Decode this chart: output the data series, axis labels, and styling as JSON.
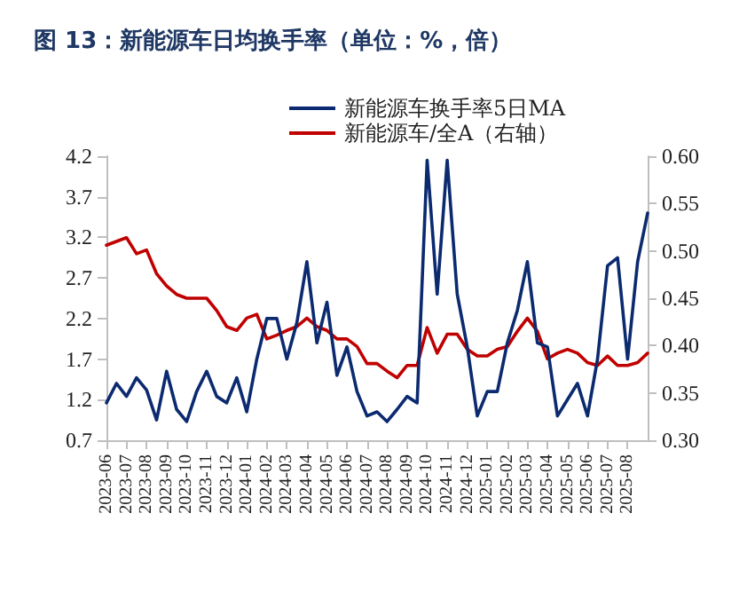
{
  "chart_data": {
    "type": "line",
    "title": "图 13：新能源车日均换手率（单位：%，倍）",
    "categories": [
      "2023-06",
      null,
      "2023-07",
      null,
      "2023-08",
      null,
      "2023-09",
      null,
      "2023-10",
      null,
      "2023-11",
      null,
      "2023-12",
      null,
      "2024-01",
      null,
      "2024-02",
      null,
      "2024-03",
      null,
      "2024-04",
      null,
      "2024-05",
      null,
      "2024-06",
      null,
      "2024-07",
      null,
      "2024-08",
      null,
      "2024-09",
      null,
      "2024-10",
      null,
      "2024-11",
      null,
      "2024-12",
      null,
      "2025-01",
      null,
      "2025-02",
      null,
      "2025-03",
      null,
      "2025-04",
      null,
      "2025-05",
      null,
      "2025-06",
      null,
      "2025-07",
      null,
      "2025-08",
      null,
      null
    ],
    "series": [
      {
        "name": "新能源车换手率5日MA",
        "color": "#0b2a6f",
        "values": [
          1.16,
          1.4,
          1.24,
          1.47,
          1.32,
          0.95,
          1.55,
          1.08,
          0.93,
          1.3,
          1.55,
          1.24,
          1.16,
          1.47,
          1.05,
          1.7,
          2.2,
          2.2,
          1.7,
          2.15,
          2.9,
          1.9,
          2.4,
          1.5,
          1.85,
          1.3,
          1.0,
          1.05,
          0.93,
          1.08,
          1.24,
          1.16,
          4.15,
          2.5,
          4.15,
          2.5,
          1.85,
          1.0,
          1.3,
          1.3,
          1.9,
          2.3,
          2.9,
          1.9,
          1.85,
          1.0,
          1.2,
          1.4,
          1.0,
          1.7,
          2.85,
          2.95,
          1.7,
          2.9,
          3.5
        ]
      },
      {
        "name": "新能源车/全A（右轴）",
        "color": "#c00000",
        "axis": "y2",
        "values": [
          0.506,
          0.51,
          0.514,
          0.497,
          0.501,
          0.476,
          0.463,
          0.454,
          0.45,
          0.45,
          0.45,
          0.437,
          0.42,
          0.416,
          0.429,
          0.433,
          0.407,
          0.411,
          0.416,
          0.42,
          0.429,
          0.42,
          0.416,
          0.407,
          0.407,
          0.399,
          0.381,
          0.381,
          0.373,
          0.366,
          0.379,
          0.379,
          0.419,
          0.392,
          0.412,
          0.412,
          0.396,
          0.389,
          0.389,
          0.396,
          0.399,
          0.415,
          0.429,
          0.415,
          0.386,
          0.392,
          0.396,
          0.392,
          0.382,
          0.379,
          0.389,
          0.379,
          0.379,
          0.382,
          0.392
        ]
      }
    ],
    "ylim": [
      0.7,
      4.2
    ],
    "yticks": [
      0.7,
      1.2,
      1.7,
      2.2,
      2.7,
      3.2,
      3.7,
      4.2
    ],
    "y2lim": [
      0.3,
      0.6
    ],
    "y2ticks": [
      {
        "value": 0.3,
        "label": "0.30"
      },
      {
        "value": 0.35,
        "label": "0.35"
      },
      {
        "value": 0.4,
        "label": "0.40"
      },
      {
        "value": 0.45,
        "label": "0.45"
      },
      {
        "value": 0.5,
        "label": "0.50"
      },
      {
        "value": 0.55,
        "label": "0.55"
      },
      {
        "value": 0.6,
        "label": "0.60"
      }
    ],
    "legend": "top",
    "grid": false,
    "marker": "none",
    "line_style": "solid"
  }
}
